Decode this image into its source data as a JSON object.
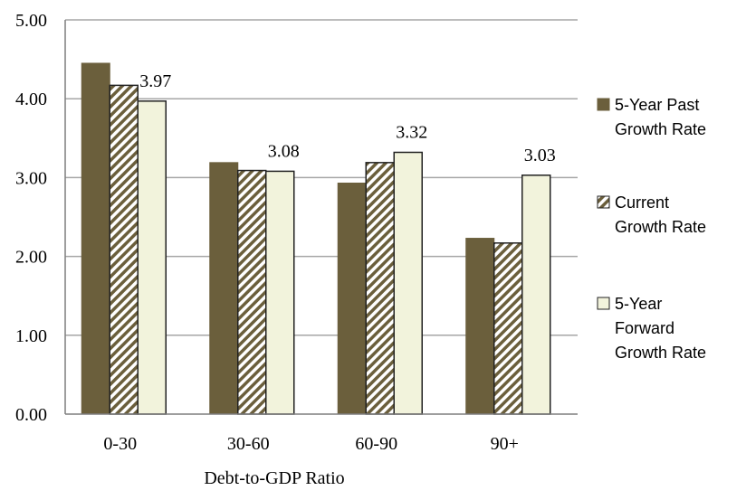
{
  "chart_data": {
    "type": "bar",
    "title": "",
    "xlabel": "Debt-to-GDP Ratio",
    "ylabel": "",
    "ylim": [
      0,
      5
    ],
    "yticks": [
      "0.00",
      "1.00",
      "2.00",
      "3.00",
      "4.00",
      "5.00"
    ],
    "grid": true,
    "legend_position": "right",
    "categories": [
      "0-30",
      "30-60",
      "60-90",
      "90+"
    ],
    "series": [
      {
        "name_lines": [
          "5-Year Past",
          "Growth Rate"
        ],
        "values": [
          4.45,
          3.19,
          2.93,
          2.23
        ],
        "fill": "#6b5f3c",
        "pattern": "solid"
      },
      {
        "name_lines": [
          "Current",
          "Growth Rate"
        ],
        "values": [
          4.17,
          3.09,
          3.19,
          2.17
        ],
        "fill": "#ffffff",
        "pattern": "diagonal-stripes",
        "stripe_color": "#6b5f3c"
      },
      {
        "name_lines": [
          "5-Year",
          "Forward",
          "Growth Rate"
        ],
        "values": [
          3.97,
          3.08,
          3.32,
          3.03
        ],
        "fill": "#f2f3dc",
        "pattern": "solid"
      }
    ],
    "data_labels": [
      {
        "series": 2,
        "category": 0,
        "text": "3.97"
      },
      {
        "series": 2,
        "category": 1,
        "text": "3.08"
      },
      {
        "series": 2,
        "category": 2,
        "text": "3.32"
      },
      {
        "series": 2,
        "category": 3,
        "text": "3.03"
      }
    ],
    "colors": {
      "grid": "#a6a6a6",
      "axis": "#7f7f7f",
      "bar_outline": "#222222"
    }
  }
}
